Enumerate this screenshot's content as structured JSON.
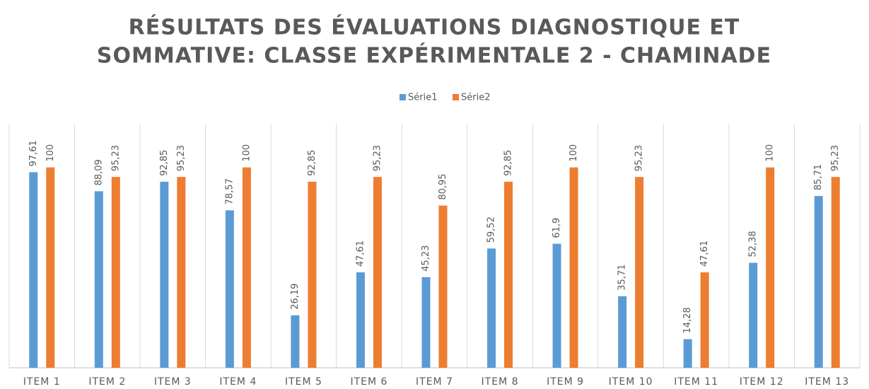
{
  "chart_data": {
    "type": "bar",
    "title": [
      "RÉSULTATS DES ÉVALUATIONS DIAGNOSTIQUE ET",
      "SOMMATIVE: CLASSE EXPÉRIMENTALE 2 - CHAMINADE"
    ],
    "categories": [
      "ITEM 1",
      "ITEM 2",
      "ITEM 3",
      "ITEM 4",
      "ITEM 5",
      "ITEM 6",
      "ITEM 7",
      "ITEM 8",
      "ITEM 9",
      "ITEM 10",
      "ITEM 11",
      "ITEM 12",
      "ITEM 13"
    ],
    "series": [
      {
        "name": "Série1",
        "color": "#5b9bd5",
        "values": [
          97.61,
          88.09,
          92.85,
          78.57,
          26.19,
          47.61,
          45.23,
          59.52,
          61.9,
          35.71,
          14.28,
          52.38,
          85.71
        ],
        "value_labels": [
          "97,61",
          "88,09",
          "92,85",
          "78,57",
          "26,19",
          "47,61",
          "45,23",
          "59,52",
          "61,9",
          "35,71",
          "14,28",
          "52,38",
          "85,71"
        ]
      },
      {
        "name": "Série2",
        "color": "#ed7d31",
        "values": [
          100,
          95.23,
          95.23,
          100,
          92.85,
          95.23,
          80.95,
          92.85,
          100,
          95.23,
          47.61,
          100,
          95.23
        ],
        "value_labels": [
          "100",
          "95,23",
          "95,23",
          "100",
          "92,85",
          "95,23",
          "80,95",
          "92,85",
          "100",
          "95,23",
          "47,61",
          "100",
          "95,23"
        ]
      }
    ],
    "ylim": [
      0,
      120
    ],
    "legend": "top"
  }
}
